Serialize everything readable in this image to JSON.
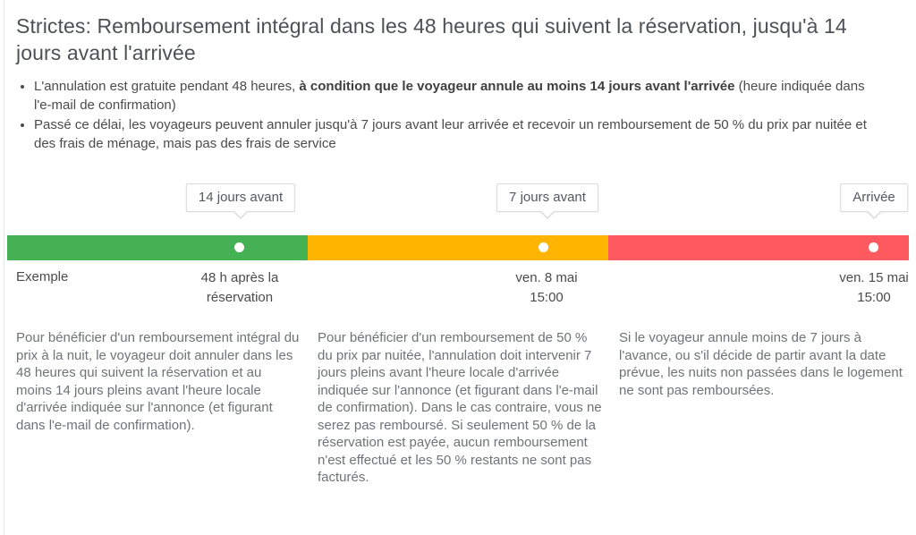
{
  "header": {
    "title": "Strictes: Remboursement intégral dans les 48 heures qui suivent la réservation, jusqu'à 14 jours avant l'arrivée"
  },
  "bullets": [
    {
      "pre": "L'annulation est gratuite pendant 48 heures, ",
      "bold": "à condition que le voyageur annule au moins 14 jours avant l'arrivée",
      "post": " (heure indiquée dans l'e-mail de confirmation)"
    },
    {
      "text": "Passé ce délai, les voyageurs peuvent annuler jusqu'à 7 jours avant leur arrivée et recevoir un remboursement de 50 % du prix par nuitée et des frais de ménage, mais pas des frais de service"
    }
  ],
  "timeline": {
    "labels": [
      "14 jours avant",
      "7 jours avant",
      "Arrivée"
    ],
    "segments": [
      {
        "name": "remboursement-integral",
        "color": "#45b155"
      },
      {
        "name": "remboursement-50-pourcent",
        "color": "#ffb400"
      },
      {
        "name": "aucun-remboursement",
        "color": "#ff5a5f"
      }
    ],
    "example_label": "Exemple",
    "milestones": [
      {
        "line1": "48 h après la",
        "line2": "réservation"
      },
      {
        "line1": "ven. 8 mai",
        "line2": "15:00"
      },
      {
        "line1": "ven. 15 mai",
        "line2": "15:00"
      }
    ]
  },
  "columns": [
    {
      "text": "Pour bénéficier d'un remboursement intégral du prix à la nuit, le voyageur doit annuler dans les 48 heures qui suivent la réservation et au moins 14 jours pleins avant l'heure locale d'arrivée indiquée sur l'annonce (et figurant dans l'e-mail de confirmation)."
    },
    {
      "text": "Pour bénéficier d'un remboursement de 50 % du prix par nuitée, l'annulation doit intervenir 7 jours pleins avant l'heure locale d'arrivée indiquée sur l'annonce (et figurant dans l'e-mail de confirmation). Dans le cas contraire, vous ne serez pas remboursé. Si seulement 50 % de la réservation est payée, aucun remboursement n'est effectué et les 50 % restants ne sont pas facturés."
    },
    {
      "text": "Si le voyageur annule moins de 7 jours à l'avance, ou s'il décide de partir avant la date prévue, les nuits non passées dans le logement ne sont pas remboursées."
    }
  ]
}
